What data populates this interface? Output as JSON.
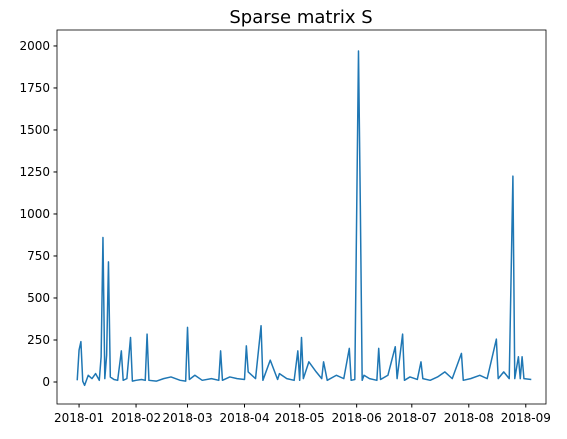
{
  "chart_data": {
    "type": "line",
    "title": "Sparse matrix S",
    "x": [
      -1,
      0,
      1,
      2,
      3,
      5,
      7,
      9,
      11,
      12,
      13,
      14,
      15,
      16,
      17,
      19,
      21,
      23,
      24,
      26,
      28,
      29,
      31,
      34,
      36,
      37,
      38,
      42,
      46,
      50,
      55,
      58,
      59,
      60,
      63,
      67,
      72,
      76,
      77,
      78,
      82,
      86,
      90,
      91,
      92,
      96,
      99,
      100,
      104,
      108,
      109,
      113,
      117,
      119,
      120,
      121,
      122,
      125,
      129,
      132,
      133,
      135,
      140,
      144,
      147,
      148,
      150,
      152,
      153,
      154,
      155,
      158,
      162,
      163,
      164,
      168,
      172,
      173,
      176,
      177,
      180,
      184,
      186,
      187,
      191,
      195,
      199,
      203,
      208,
      209,
      213,
      218,
      222,
      227,
      228,
      231,
      234,
      236,
      237,
      239,
      240,
      241,
      242,
      246
    ],
    "series": [
      {
        "name": "S",
        "color": "#1f77b4",
        "values": [
          10,
          190,
          240,
          5,
          -20,
          40,
          20,
          50,
          10,
          150,
          860,
          20,
          160,
          715,
          30,
          15,
          10,
          185,
          10,
          20,
          265,
          5,
          10,
          15,
          10,
          285,
          10,
          5,
          20,
          30,
          10,
          5,
          325,
          15,
          40,
          10,
          20,
          10,
          185,
          10,
          30,
          20,
          15,
          215,
          60,
          20,
          335,
          10,
          130,
          15,
          50,
          20,
          10,
          185,
          10,
          265,
          20,
          120,
          60,
          20,
          120,
          10,
          40,
          20,
          200,
          10,
          15,
          1970,
          1050,
          10,
          40,
          20,
          10,
          200,
          15,
          40,
          210,
          20,
          285,
          10,
          30,
          15,
          120,
          20,
          10,
          30,
          60,
          20,
          170,
          10,
          20,
          40,
          20,
          255,
          20,
          60,
          20,
          1225,
          20,
          150,
          20,
          150,
          20,
          15
        ]
      }
    ],
    "xlim": [
      -12,
      254
    ],
    "xticks": [
      {
        "value": 0,
        "label": "2018-01"
      },
      {
        "value": 31,
        "label": "2018-02"
      },
      {
        "value": 59,
        "label": "2018-03"
      },
      {
        "value": 90,
        "label": "2018-04"
      },
      {
        "value": 120,
        "label": "2018-05"
      },
      {
        "value": 151,
        "label": "2018-06"
      },
      {
        "value": 181,
        "label": "2018-07"
      },
      {
        "value": 212,
        "label": "2018-08"
      },
      {
        "value": 243,
        "label": "2018-09"
      }
    ],
    "ylim": [
      -131,
      2095
    ],
    "yticks": [
      0,
      250,
      500,
      750,
      1000,
      1250,
      1500,
      1750,
      2000
    ],
    "grid": false
  }
}
